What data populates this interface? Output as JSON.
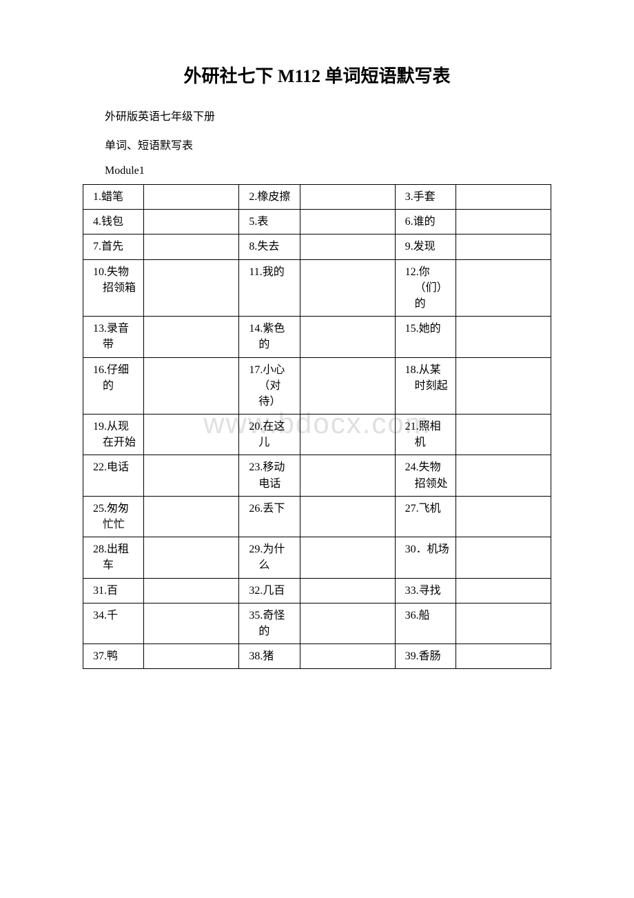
{
  "title": "外研社七下 M112 单词短语默写表",
  "intro_lines": [
    "外研版英语七年级下册",
    "单词、短语默写表"
  ],
  "module_label": "Module1",
  "watermark": "www.bdocx.com",
  "vocab_rows": [
    {
      "c1": "1.蜡笔",
      "c2": "2.橡皮擦",
      "c3": "3.手套"
    },
    {
      "c1": "4.钱包",
      "c2": "5.表",
      "c3": "6.谁的"
    },
    {
      "c1": "7.首先",
      "c2": "8.失去",
      "c3": "9.发现"
    },
    {
      "c1": "10.失物招领箱",
      "c2": "11.我的",
      "c3": "12.你（们）的"
    },
    {
      "c1": "13.录音带",
      "c2": "14.紫色的",
      "c3": "15.她的"
    },
    {
      "c1": "16.仔细的",
      "c2": "17.小心（对待）",
      "c3": "18.从某时刻起"
    },
    {
      "c1": "19.从现在开始",
      "c2": "20.在这儿",
      "c3": "21.照相机"
    },
    {
      "c1": "22.电话",
      "c2": "23.移动电话",
      "c3": "24.失物招领处"
    },
    {
      "c1": "25.匆匆忙忙",
      "c2": "26.丢下",
      "c3": "27.飞机"
    },
    {
      "c1": "28.出租车",
      "c2": "29.为什么",
      "c3": "30．机场"
    },
    {
      "c1": "31.百",
      "c2": "32.几百",
      "c3": "33.寻找"
    },
    {
      "c1": "34.千",
      "c2": "35.奇怪的",
      "c3": "36.船"
    },
    {
      "c1": "37.鸭",
      "c2": "38.猪",
      "c3": "39.香肠"
    }
  ],
  "colors": {
    "text": "#000000",
    "background": "#ffffff",
    "border": "#000000",
    "watermark": "rgba(0,0,0,0.12)"
  }
}
